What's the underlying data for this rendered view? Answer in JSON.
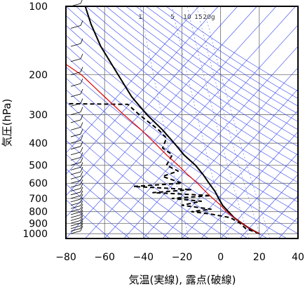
{
  "chart_data": {
    "type": "line",
    "title": "",
    "xlabel": "気温(実線), 露点(破線)",
    "ylabel": "気圧(hPa)",
    "xlim": [
      -80,
      40
    ],
    "ylim": [
      1050,
      100
    ],
    "y_scale": "log",
    "grid": true,
    "x_ticks": [
      -80,
      -60,
      -40,
      -20,
      0,
      20,
      40
    ],
    "x_tick_labels": [
      "−80",
      "−60",
      "−40",
      "−20",
      "0",
      "20",
      "40"
    ],
    "y_ticks": [
      100,
      200,
      300,
      400,
      500,
      600,
      700,
      800,
      900,
      1000
    ],
    "mixing_ratio_labels": [
      "1",
      "5",
      "10",
      "15",
      "20g"
    ],
    "mixing_ratio_values": [
      1,
      5,
      10,
      15,
      20
    ],
    "isotherm_values_C": [
      -120,
      -110,
      -100,
      -90,
      -80,
      -70,
      -60,
      -50,
      -40,
      -30,
      -20,
      -10,
      0,
      10,
      20,
      30,
      40
    ],
    "series": [
      {
        "style": "solid",
        "color": "#000000",
        "points": [
          {
            "p": 1000,
            "t": 20
          },
          {
            "p": 950,
            "t": 15
          },
          {
            "p": 900,
            "t": 11
          },
          {
            "p": 850,
            "t": 7
          },
          {
            "p": 800,
            "t": 4
          },
          {
            "p": 750,
            "t": 1
          },
          {
            "p": 700,
            "t": -1
          },
          {
            "p": 650,
            "t": -3
          },
          {
            "p": 600,
            "t": -6
          },
          {
            "p": 550,
            "t": -9
          },
          {
            "p": 500,
            "t": -13
          },
          {
            "p": 450,
            "t": -19
          },
          {
            "p": 400,
            "t": -24
          },
          {
            "p": 350,
            "t": -30
          },
          {
            "p": 300,
            "t": -38
          },
          {
            "p": 250,
            "t": -46
          },
          {
            "p": 200,
            "t": -53
          },
          {
            "p": 150,
            "t": -62
          },
          {
            "p": 120,
            "t": -67
          },
          {
            "p": 100,
            "t": -70
          }
        ]
      },
      {
        "style": "dashed",
        "color": "#000000",
        "points": [
          {
            "p": 1000,
            "t": 20
          },
          {
            "p": 950,
            "t": 13
          },
          {
            "p": 900,
            "t": 10
          },
          {
            "p": 850,
            "t": 5
          },
          {
            "p": 820,
            "t": -5
          },
          {
            "p": 800,
            "t": -15
          },
          {
            "p": 780,
            "t": -5
          },
          {
            "p": 750,
            "t": -20
          },
          {
            "p": 720,
            "t": -10
          },
          {
            "p": 700,
            "t": -25
          },
          {
            "p": 680,
            "t": -5
          },
          {
            "p": 660,
            "t": -35
          },
          {
            "p": 640,
            "t": -15
          },
          {
            "p": 620,
            "t": -45
          },
          {
            "p": 600,
            "t": -20
          },
          {
            "p": 560,
            "t": -30
          },
          {
            "p": 530,
            "t": -22
          },
          {
            "p": 500,
            "t": -28
          },
          {
            "p": 450,
            "t": -25
          },
          {
            "p": 420,
            "t": -30
          },
          {
            "p": 380,
            "t": -28
          },
          {
            "p": 350,
            "t": -32
          },
          {
            "p": 300,
            "t": -42
          },
          {
            "p": 270,
            "t": -48
          },
          {
            "p": 268,
            "t": -80
          }
        ]
      },
      {
        "style": "solid",
        "color": "#e00000",
        "points": [
          {
            "p": 1000,
            "t": 20
          },
          {
            "p": 950,
            "t": 15
          },
          {
            "p": 900,
            "t": 11
          },
          {
            "p": 850,
            "t": 7
          },
          {
            "p": 800,
            "t": 3
          },
          {
            "p": 750,
            "t": 0
          },
          {
            "p": 700,
            "t": -4
          },
          {
            "p": 650,
            "t": -8
          },
          {
            "p": 600,
            "t": -12
          },
          {
            "p": 550,
            "t": -17
          },
          {
            "p": 500,
            "t": -22
          },
          {
            "p": 450,
            "t": -28
          },
          {
            "p": 400,
            "t": -34
          },
          {
            "p": 350,
            "t": -41
          },
          {
            "p": 300,
            "t": -50
          },
          {
            "p": 250,
            "t": -60
          },
          {
            "p": 200,
            "t": -72
          },
          {
            "p": 180,
            "t": -80
          }
        ]
      }
    ],
    "wind_barbs": "present along left edge (1000–100 hPa)"
  }
}
